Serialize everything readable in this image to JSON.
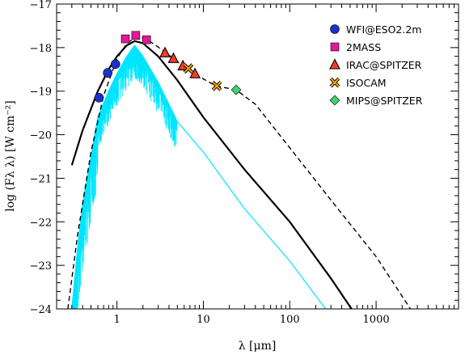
{
  "chart_data": {
    "type": "scatter",
    "xlabel": "λ [μm]",
    "ylabel": "log (Fλ λ)  [W cm⁻²]",
    "x_scale": "log",
    "xlim": [
      0.2,
      9000
    ],
    "ylim": [
      -24,
      -17
    ],
    "x_ticks": [
      {
        "value": 1,
        "label": "1"
      },
      {
        "value": 10,
        "label": "10"
      },
      {
        "value": 100,
        "label": "100"
      },
      {
        "value": 1000,
        "label": "1000"
      }
    ],
    "y_ticks": [
      {
        "value": -24,
        "label": "−24"
      },
      {
        "value": -23,
        "label": "−23"
      },
      {
        "value": -22,
        "label": "−22"
      },
      {
        "value": -21,
        "label": "−21"
      },
      {
        "value": -20,
        "label": "−20"
      },
      {
        "value": -19,
        "label": "−19"
      },
      {
        "value": -18,
        "label": "−18"
      },
      {
        "value": -17,
        "label": "−17"
      }
    ],
    "legend_position": "top-right",
    "series": [
      {
        "name": "WFI@ESO2.2m",
        "marker": "circle",
        "color": "#1a33cc",
        "points": [
          [
            0.62,
            -19.15
          ],
          [
            0.78,
            -18.58
          ],
          [
            0.96,
            -18.38
          ]
        ]
      },
      {
        "name": "2MASS",
        "marker": "square",
        "color": "#e0189a",
        "points": [
          [
            1.25,
            -17.8
          ],
          [
            1.65,
            -17.72
          ],
          [
            2.2,
            -17.82
          ]
        ]
      },
      {
        "name": "IRAC@SPITZER",
        "marker": "triangle",
        "color": "#ff3b2a",
        "points": [
          [
            3.6,
            -18.12
          ],
          [
            4.5,
            -18.25
          ],
          [
            5.8,
            -18.42
          ],
          [
            8.0,
            -18.6
          ]
        ]
      },
      {
        "name": "ISOCAM",
        "marker": "x",
        "color": "#f5a800",
        "points": [
          [
            6.7,
            -18.48
          ],
          [
            14.3,
            -18.88
          ]
        ]
      },
      {
        "name": "MIPS@SPITZER",
        "marker": "diamond",
        "color": "#3fd46a",
        "points": [
          [
            24,
            -18.97
          ]
        ]
      }
    ],
    "curves": [
      {
        "style": "solid-thick",
        "color": "#000000",
        "points": [
          [
            0.3,
            -20.7
          ],
          [
            0.4,
            -19.9
          ],
          [
            0.6,
            -19.0
          ],
          [
            0.8,
            -18.5
          ],
          [
            1.0,
            -18.2
          ],
          [
            1.3,
            -17.95
          ],
          [
            1.6,
            -17.85
          ],
          [
            2.0,
            -17.9
          ],
          [
            3.0,
            -18.2
          ],
          [
            5.0,
            -18.75
          ],
          [
            10.0,
            -19.6
          ],
          [
            30.0,
            -20.8
          ],
          [
            100.0,
            -22.0
          ],
          [
            300.0,
            -23.3
          ],
          [
            520.0,
            -24.0
          ]
        ]
      },
      {
        "style": "dashed",
        "color": "#000000",
        "points": [
          [
            0.27,
            -24.0
          ],
          [
            0.35,
            -22.3
          ],
          [
            0.5,
            -20.4
          ],
          [
            0.7,
            -19.1
          ],
          [
            1.0,
            -18.25
          ],
          [
            1.3,
            -17.9
          ],
          [
            1.7,
            -17.75
          ],
          [
            2.2,
            -17.8
          ],
          [
            3.6,
            -18.1
          ],
          [
            6.0,
            -18.45
          ],
          [
            10.0,
            -18.72
          ],
          [
            14.0,
            -18.88
          ],
          [
            24.0,
            -18.97
          ],
          [
            40.0,
            -19.3
          ],
          [
            100.0,
            -20.3
          ],
          [
            300.0,
            -21.5
          ],
          [
            1000.0,
            -22.8
          ],
          [
            2500.0,
            -24.0
          ]
        ]
      },
      {
        "style": "spectrum",
        "color": "#00e5ff",
        "points": [
          [
            0.3,
            -24.0
          ],
          [
            0.35,
            -22.6
          ],
          [
            0.4,
            -21.6
          ],
          [
            0.5,
            -20.5
          ],
          [
            0.6,
            -19.6
          ],
          [
            0.8,
            -19.0
          ],
          [
            1.0,
            -18.6
          ],
          [
            1.3,
            -18.2
          ],
          [
            1.6,
            -17.95
          ],
          [
            2.0,
            -18.2
          ],
          [
            3.0,
            -18.8
          ],
          [
            5.0,
            -19.7
          ],
          [
            10.0,
            -20.4
          ],
          [
            30.0,
            -21.7
          ],
          [
            100.0,
            -22.9
          ],
          [
            260.0,
            -24.0
          ]
        ]
      }
    ]
  }
}
